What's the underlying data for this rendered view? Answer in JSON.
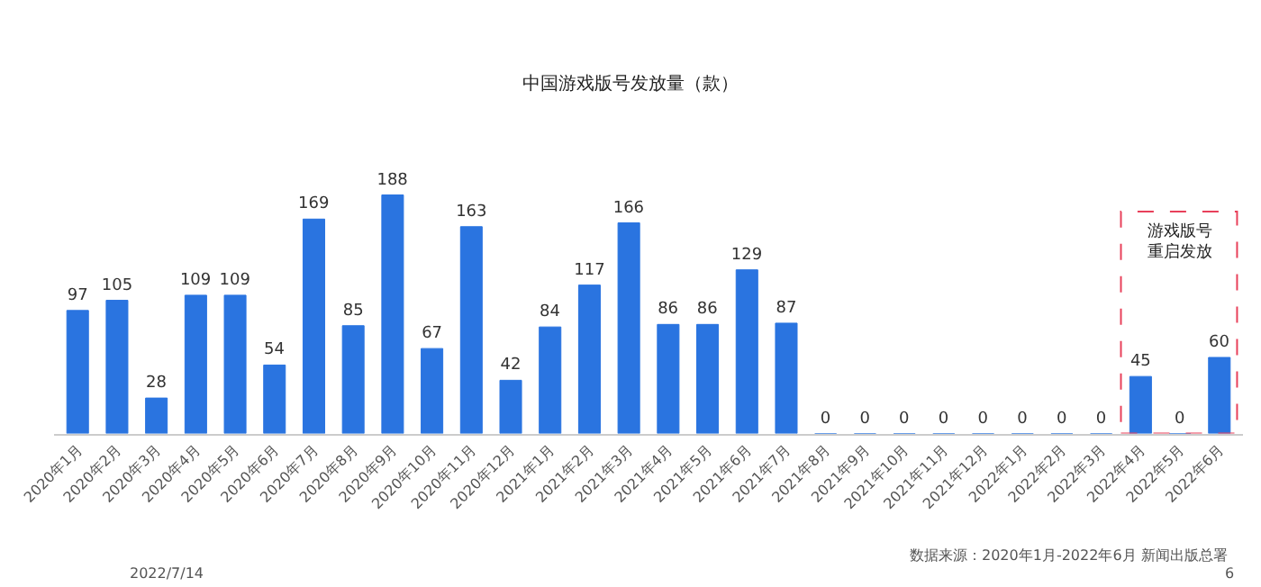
{
  "chart_data": {
    "type": "bar",
    "title": "中国游戏版号发放量（款）",
    "categories": [
      "2020年1月",
      "2020年2月",
      "2020年3月",
      "2020年4月",
      "2020年5月",
      "2020年6月",
      "2020年7月",
      "2020年8月",
      "2020年9月",
      "2020年10月",
      "2020年11月",
      "2020年12月",
      "2021年1月",
      "2021年2月",
      "2021年3月",
      "2021年4月",
      "2021年5月",
      "2021年6月",
      "2021年7月",
      "2021年8月",
      "2021年9月",
      "2021年10月",
      "2021年11月",
      "2021年12月",
      "2022年1月",
      "2022年2月",
      "2022年3月",
      "2022年4月",
      "2022年5月",
      "2022年6月"
    ],
    "values": [
      97,
      105,
      28,
      109,
      109,
      54,
      169,
      85,
      188,
      67,
      163,
      42,
      84,
      117,
      166,
      86,
      86,
      129,
      87,
      0,
      0,
      0,
      0,
      0,
      0,
      0,
      0,
      45,
      0,
      60
    ],
    "color": "#2a74e0",
    "data_labels": true,
    "annotations": [
      "数据来源：2020年1月-2022年6月 新闻出版总署",
      "2022/7/14",
      "6",
      "游戏版号重启发放"
    ]
  }
}
